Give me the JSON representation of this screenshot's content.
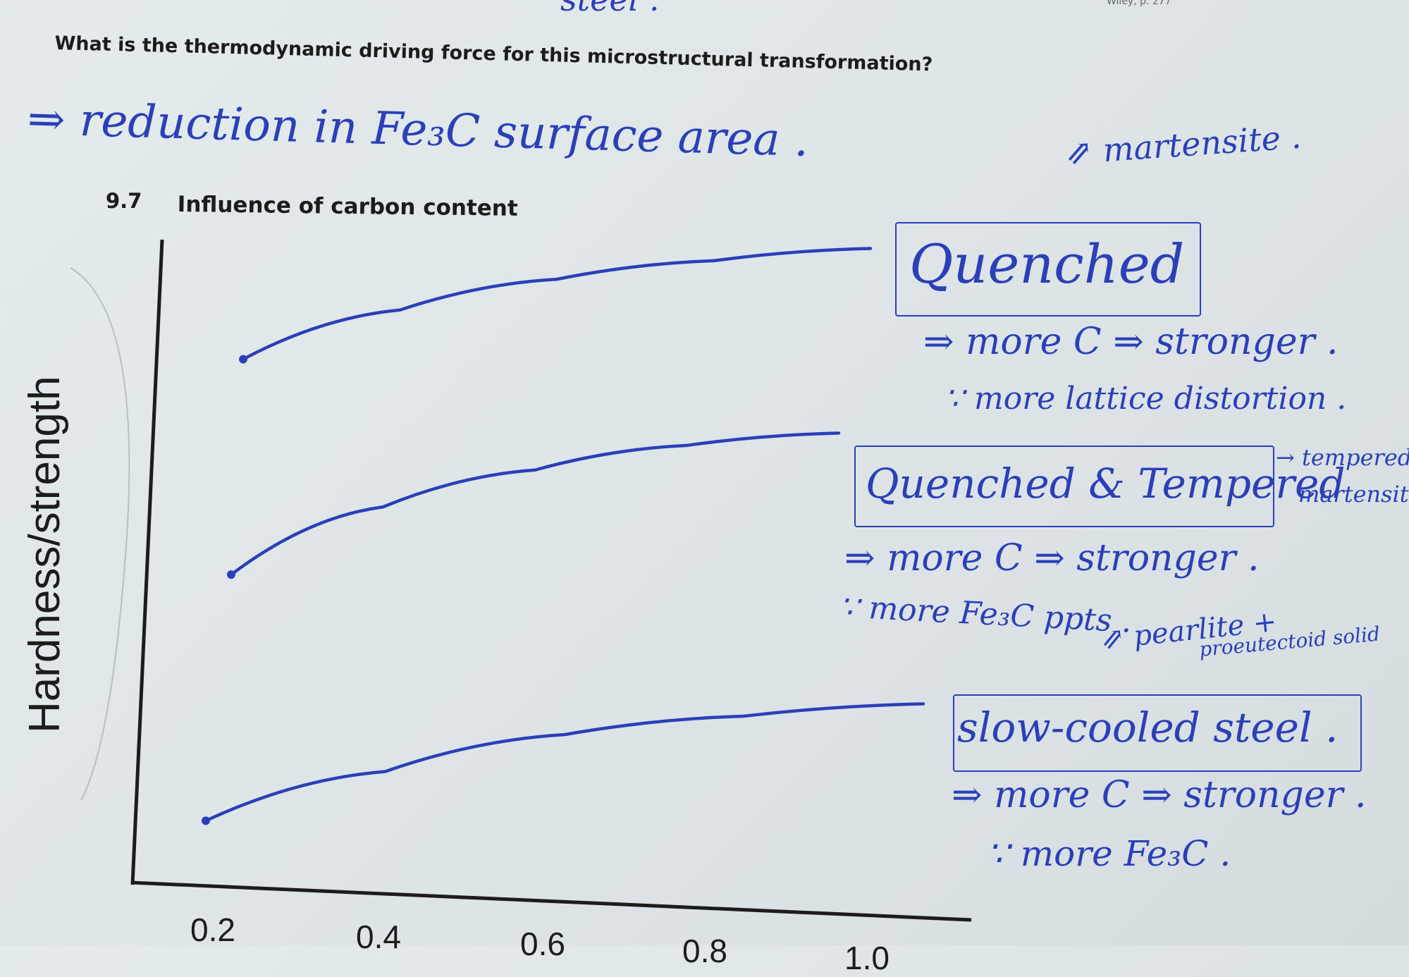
{
  "printed": {
    "top_fragment": "steel .",
    "top_right_ref": "Wiley, p. 277",
    "question": "What is the thermodynamic driving force for this microstructural transformation?",
    "section_number": "9.7",
    "section_title": "Influence of carbon content",
    "y_axis_label": "Hardness/strength",
    "x_ticks": [
      "0.2",
      "0.4",
      "0.6",
      "0.8",
      "1.0"
    ]
  },
  "handwritten": {
    "answer": "⇒ reduction in Fe₃C surface area .",
    "martensite_note": "⇗ martensite .",
    "quenched_box": "Quenched",
    "quenched_line1": "⇒ more C ⇒ stronger .",
    "quenched_line2": "∵ more lattice distortion .",
    "qt_box": "Quenched & Tempered",
    "qt_side_1": "→ tempered",
    "qt_side_2": "martensite",
    "qt_line1": "⇒ more C ⇒ stronger .",
    "qt_line2": "∵ more Fe₃C ppts .",
    "slow_note_1": "⇗ pearlite +",
    "slow_note_2": "proeutectoid solid",
    "slow_box": "slow-cooled steel .",
    "slow_line1": "⇒ more C ⇒ stronger .",
    "slow_line2": "∵ more Fe₃C ."
  },
  "colors": {
    "ink": "#2b3fb8",
    "print": "#1c1c1c",
    "paper": "#e1e8ea"
  },
  "chart_data": {
    "type": "line",
    "title": "Influence of carbon content",
    "xlabel": "",
    "ylabel": "Hardness/strength",
    "x_ticks": [
      0.2,
      0.4,
      0.6,
      0.8,
      1.0
    ],
    "series": [
      {
        "name": "Quenched",
        "x": [
          0.2,
          0.4,
          0.6,
          0.8,
          1.0
        ],
        "y": [
          0.8,
          0.88,
          0.93,
          0.96,
          0.98
        ]
      },
      {
        "name": "Quenched & Tempered",
        "x": [
          0.2,
          0.4,
          0.6,
          0.8,
          1.0
        ],
        "y": [
          0.45,
          0.56,
          0.62,
          0.66,
          0.68
        ]
      },
      {
        "name": "slow-cooled steel",
        "x": [
          0.2,
          0.4,
          0.6,
          0.8,
          1.0
        ],
        "y": [
          0.05,
          0.13,
          0.19,
          0.22,
          0.24
        ]
      }
    ]
  }
}
